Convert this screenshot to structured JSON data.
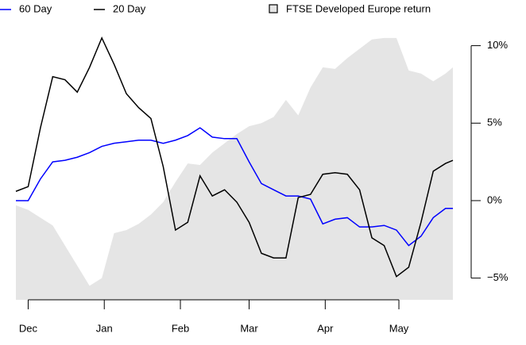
{
  "chart_data": {
    "type": "line",
    "x": [
      -5,
      0,
      5,
      10,
      15,
      20,
      25,
      30,
      35,
      40,
      45,
      50,
      55,
      60,
      65,
      70,
      75,
      80,
      85,
      90,
      95,
      100,
      105,
      110,
      115,
      120,
      125,
      130,
      135,
      140,
      145,
      150,
      155,
      160,
      165,
      170,
      173
    ],
    "xlim": [
      -5,
      173
    ],
    "xticks": [
      {
        "value": 0,
        "label": "Dec"
      },
      {
        "value": 31,
        "label": "Jan"
      },
      {
        "value": 62,
        "label": "Feb"
      },
      {
        "value": 90,
        "label": "Mar"
      },
      {
        "value": 121,
        "label": "Apr"
      },
      {
        "value": 151,
        "label": "May"
      }
    ],
    "ylim": [
      -6.4,
      10.9
    ],
    "yticks": [
      {
        "value": -5,
        "label": "−5%"
      },
      {
        "value": 0,
        "label": "0%"
      },
      {
        "value": 5,
        "label": "5%"
      },
      {
        "value": 10,
        "label": "10%"
      }
    ],
    "series": [
      {
        "name": "FTSE Developed Europe return",
        "color": "#e5e5e5",
        "style": "area",
        "values": [
          -0.3,
          -0.6,
          -1.1,
          -1.6,
          -2.9,
          -4.2,
          -5.5,
          -5.0,
          -2.1,
          -1.9,
          -1.5,
          -0.9,
          -0.1,
          1.2,
          2.4,
          2.3,
          3.1,
          3.7,
          4.3,
          4.8,
          5.0,
          5.4,
          6.5,
          5.5,
          7.3,
          8.6,
          8.5,
          9.2,
          9.8,
          10.4,
          10.5,
          10.5,
          8.4,
          8.2,
          7.7,
          8.2,
          8.6
        ]
      },
      {
        "name": "60 Day",
        "color": "#0000ff",
        "style": "line",
        "values": [
          0,
          0,
          1.4,
          2.5,
          2.6,
          2.8,
          3.1,
          3.5,
          3.7,
          3.8,
          3.9,
          3.9,
          3.7,
          3.9,
          4.2,
          4.7,
          4.1,
          4.0,
          4.0,
          2.5,
          1.1,
          0.7,
          0.3,
          0.3,
          0.1,
          -1.5,
          -1.2,
          -1.1,
          -1.7,
          -1.7,
          -1.6,
          -1.9,
          -2.9,
          -2.3,
          -1.1,
          -0.5,
          -0.5
        ]
      },
      {
        "name": "20 Day",
        "color": "#000000",
        "style": "line",
        "values": [
          0.6,
          0.9,
          4.7,
          8.0,
          7.8,
          7.0,
          8.6,
          10.5,
          8.8,
          6.9,
          6.0,
          5.3,
          2.2,
          -1.9,
          -1.4,
          1.6,
          0.3,
          0.7,
          -0.1,
          -1.4,
          -3.4,
          -3.7,
          -3.7,
          0.2,
          0.4,
          1.7,
          1.8,
          1.7,
          0.7,
          -2.4,
          -2.9,
          -4.9,
          -4.3,
          -1.4,
          1.9,
          2.4,
          2.6
        ]
      }
    ]
  }
}
